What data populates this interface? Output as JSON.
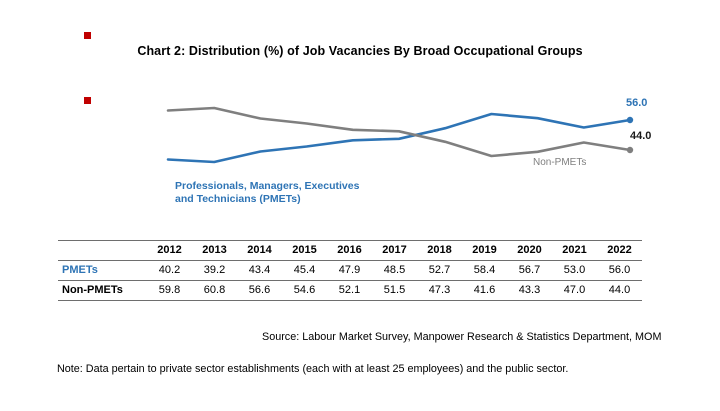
{
  "colors": {
    "pmets_blue": "#2E74B5",
    "nonpmets_gray": "#7F7F7F",
    "marker_red": "#C00000",
    "rule_gray": "#6e6e6e"
  },
  "title": "Chart 2: Distribution (%) of Job Vacancies By Broad Occupational Groups",
  "chart_data": {
    "type": "line",
    "title": "Chart 2: Distribution (%) of Job Vacancies By Broad Occupational Groups",
    "x": [
      "2012",
      "2013",
      "2014",
      "2015",
      "2016",
      "2017",
      "2018",
      "2019",
      "2020",
      "2021",
      "2022"
    ],
    "series": [
      {
        "name": "PMETs",
        "color": "#2E74B5",
        "values": [
          40.2,
          39.2,
          43.4,
          45.4,
          47.9,
          48.5,
          52.7,
          58.4,
          56.7,
          53.0,
          56.0
        ],
        "end_label": "56.0"
      },
      {
        "name": "Non-PMETs",
        "color": "#7F7F7F",
        "values": [
          59.8,
          60.8,
          56.6,
          54.6,
          52.1,
          51.5,
          47.3,
          41.6,
          43.3,
          47.0,
          44.0
        ],
        "end_label": "44.0"
      }
    ],
    "ylim": [
      35,
      65
    ],
    "grid": false,
    "legend_position": "inline-annotations",
    "xlabel": "",
    "ylabel": ""
  },
  "annotations": {
    "pmets_label_line1": "Professionals, Managers, Executives",
    "pmets_label_line2": "and Technicians (PMETs)",
    "nonpmets_label": "Non-PMETs",
    "pmets_end_value": "56.0",
    "nonpmets_end_value": "44.0"
  },
  "table": {
    "years": [
      "2012",
      "2013",
      "2014",
      "2015",
      "2016",
      "2017",
      "2018",
      "2019",
      "2020",
      "2021",
      "2022"
    ],
    "rows": [
      {
        "label": "PMETs",
        "values": [
          "40.2",
          "39.2",
          "43.4",
          "45.4",
          "47.9",
          "48.5",
          "52.7",
          "58.4",
          "56.7",
          "53.0",
          "56.0"
        ]
      },
      {
        "label": "Non-PMETs",
        "values": [
          "59.8",
          "60.8",
          "56.6",
          "54.6",
          "52.1",
          "51.5",
          "47.3",
          "41.6",
          "43.3",
          "47.0",
          "44.0"
        ]
      }
    ]
  },
  "footer": {
    "source": "Source: Labour Market Survey, Manpower Research & Statistics Department, MOM",
    "note": "Note: Data pertain to private sector establishments (each with at least 25 employees) and the public sector."
  }
}
